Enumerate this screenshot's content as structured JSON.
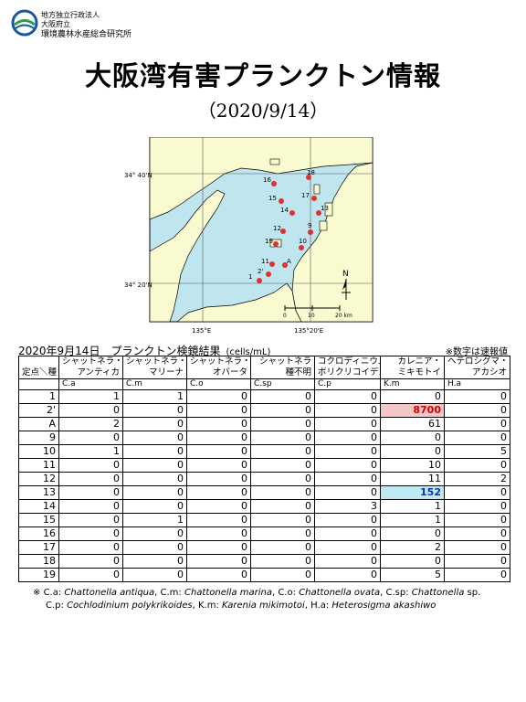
{
  "header": {
    "org_line1": "地方独立行政法人",
    "org_line2": "大阪府立",
    "org_line3": "環境農林水産総合研究所"
  },
  "title": "大阪湾有害プランクトン情報",
  "date": "（2020/9/14）",
  "map": {
    "lat_labels": [
      "34° 40'N",
      "34° 20'N"
    ],
    "lon_labels": [
      "135°E",
      "135°20'E"
    ],
    "stations": [
      "16",
      "18",
      "15",
      "17",
      "14",
      "13",
      "12",
      "9",
      "19",
      "10",
      "11",
      "A",
      "2'",
      "1"
    ],
    "scale_labels": [
      "0",
      "10",
      "20 km"
    ],
    "north_label": "N",
    "colors": {
      "sea": "#bfe6ef",
      "land": "#fafad0",
      "station": "#e03030"
    }
  },
  "caption": "2020年9月14日　プランクトン検鏡結果",
  "unit": "(cells/mL)",
  "note": "※数字は速報値",
  "table": {
    "header_row1": [
      "",
      "シャットネラ・",
      "シャットネラ・",
      "シャットネラ・",
      "シャットネラ",
      "コクロディニウム・",
      "カレニア・",
      "ヘテロシグマ・"
    ],
    "header_row2": [
      "定点＼種",
      "アンティカ",
      "マリーナ",
      "オバータ",
      "種不明",
      "ポリクリコイデス",
      "ミキモトイ",
      "アカシオ"
    ],
    "header_row3": [
      "",
      "C.a",
      "C.m",
      "C.o",
      "C.sp",
      "C.p",
      "K.m",
      "H.a"
    ],
    "rows": [
      {
        "station": "1",
        "values": [
          "1",
          "1",
          "0",
          "0",
          "0",
          "0",
          "0"
        ]
      },
      {
        "station": "2'",
        "values": [
          "0",
          "0",
          "0",
          "0",
          "0",
          "8700",
          "0"
        ]
      },
      {
        "station": "A",
        "values": [
          "2",
          "0",
          "0",
          "0",
          "0",
          "61",
          "0"
        ]
      },
      {
        "station": "9",
        "values": [
          "0",
          "0",
          "0",
          "0",
          "0",
          "0",
          "0"
        ]
      },
      {
        "station": "10",
        "values": [
          "1",
          "0",
          "0",
          "0",
          "0",
          "0",
          "5"
        ]
      },
      {
        "station": "11",
        "values": [
          "0",
          "0",
          "0",
          "0",
          "0",
          "10",
          "0"
        ]
      },
      {
        "station": "12",
        "values": [
          "0",
          "0",
          "0",
          "0",
          "0",
          "11",
          "2"
        ]
      },
      {
        "station": "13",
        "values": [
          "0",
          "0",
          "0",
          "0",
          "0",
          "152",
          "0"
        ]
      },
      {
        "station": "14",
        "values": [
          "0",
          "0",
          "0",
          "0",
          "3",
          "1",
          "0"
        ]
      },
      {
        "station": "15",
        "values": [
          "0",
          "1",
          "0",
          "0",
          "0",
          "1",
          "0"
        ]
      },
      {
        "station": "16",
        "values": [
          "0",
          "0",
          "0",
          "0",
          "0",
          "0",
          "0"
        ]
      },
      {
        "station": "17",
        "values": [
          "0",
          "0",
          "0",
          "0",
          "0",
          "2",
          "0"
        ]
      },
      {
        "station": "18",
        "values": [
          "0",
          "0",
          "0",
          "0",
          "0",
          "0",
          "0"
        ]
      },
      {
        "station": "19",
        "values": [
          "0",
          "0",
          "0",
          "0",
          "0",
          "5",
          "0"
        ]
      }
    ],
    "highlights": {
      "red_row": 1,
      "blue_row": 7,
      "column": 5
    }
  },
  "footnote": {
    "mark": "※ ",
    "l1_a": "C.a: ",
    "l1_b": "Chattonella antiqua",
    "l1_c": ", C.m: ",
    "l1_d": "Chattonella marina",
    "l1_e": ", C.o: ",
    "l1_f": "Chattonella ovata",
    "l1_g": ", C.sp: ",
    "l1_h": "Chattonella",
    "l1_i": " sp.",
    "l2_a": "C.p: ",
    "l2_b": "Cochlodinium polykrikoides",
    "l2_c": ",  K.m: ",
    "l2_d": "Karenia mikimotoi",
    "l2_e": ",  H.a: ",
    "l2_f": "Heterosigma akashiwo"
  }
}
